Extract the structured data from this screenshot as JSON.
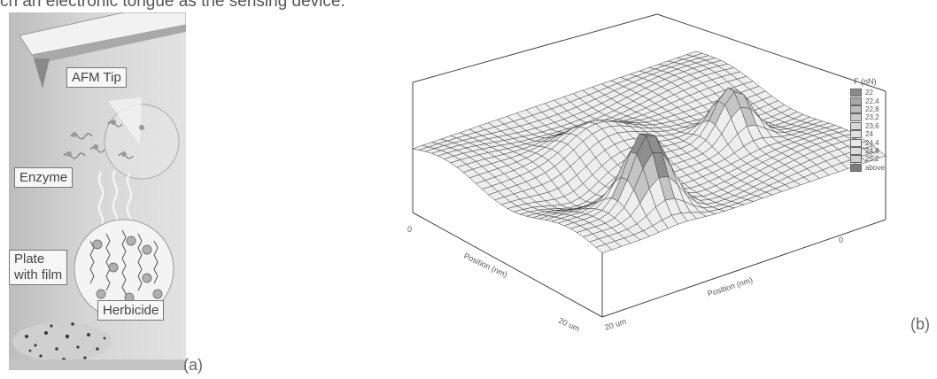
{
  "caption_fragment": "ch an electronic tongue as the sensing device.",
  "panel_a": {
    "label": "(a)",
    "tags": {
      "afm_tip": "AFM Tip",
      "enzyme": "Enzyme",
      "plate_line1": "Plate",
      "plate_line2": "with film",
      "herbicide": "Herbicide"
    }
  },
  "panel_b": {
    "label": "(b)",
    "legend_title": "F (nN)",
    "legend_items": [
      {
        "label": "22",
        "color": "#8a8a8a"
      },
      {
        "label": "22,4",
        "color": "#a8a8a8"
      },
      {
        "label": "22,8",
        "color": "#bcbcbc"
      },
      {
        "label": "23,2",
        "color": "#cacaca"
      },
      {
        "label": "23,6",
        "color": "#d6d6d6"
      },
      {
        "label": "24",
        "color": "#e0e0e0"
      },
      {
        "label": "24,4",
        "color": "#e8e8e8"
      },
      {
        "label": "24,8",
        "color": "#dcdcdc"
      },
      {
        "label": "25,2",
        "color": "#cfcfcf"
      },
      {
        "label": "above",
        "color": "#7c7c7c"
      }
    ],
    "axis_left_zero": "0",
    "axis_right_zero": "0",
    "axis_left_title": "Position (nm)",
    "axis_right_title": "Position (nm)",
    "axis_left_end": "20 um",
    "axis_right_end": "20 um"
  }
}
